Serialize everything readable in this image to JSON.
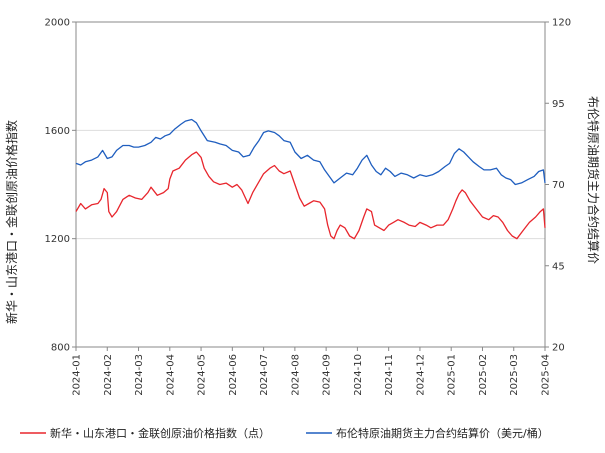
{
  "chart_data": {
    "type": "line",
    "left_axis": {
      "label": "新华・山东港口・金联创原油价格指数",
      "min": 800,
      "max": 2000,
      "ticks": [
        "800",
        "1200",
        "1600",
        "2000"
      ]
    },
    "right_axis": {
      "label": "布伦特原油期货主力合约结算价",
      "min": 20,
      "max": 120,
      "ticks": [
        "20",
        "45",
        "70",
        "95",
        "120"
      ]
    },
    "x_categories": [
      "2024-01",
      "2024-02",
      "2024-03",
      "2024-04",
      "2024-05",
      "2024-06",
      "2024-07",
      "2024-08",
      "2024-09",
      "2024-10",
      "2024-11",
      "2024-12",
      "2025-01",
      "2025-02",
      "2025-03",
      "2025-04"
    ],
    "grid": true,
    "legend_position": "bottom",
    "series": [
      {
        "name": "新华・山东港口・金联创原油价格指数（点）",
        "axis": "left",
        "color": "#e8262d",
        "values": [
          [
            0.0,
            1300
          ],
          [
            0.15,
            1330
          ],
          [
            0.3,
            1310
          ],
          [
            0.5,
            1325
          ],
          [
            0.7,
            1330
          ],
          [
            0.8,
            1345
          ],
          [
            0.9,
            1385
          ],
          [
            1.0,
            1370
          ],
          [
            1.05,
            1300
          ],
          [
            1.15,
            1280
          ],
          [
            1.3,
            1300
          ],
          [
            1.5,
            1345
          ],
          [
            1.7,
            1360
          ],
          [
            1.9,
            1350
          ],
          [
            2.1,
            1345
          ],
          [
            2.3,
            1370
          ],
          [
            2.4,
            1390
          ],
          [
            2.6,
            1360
          ],
          [
            2.8,
            1370
          ],
          [
            2.95,
            1385
          ],
          [
            3.0,
            1420
          ],
          [
            3.1,
            1450
          ],
          [
            3.3,
            1460
          ],
          [
            3.5,
            1490
          ],
          [
            3.7,
            1510
          ],
          [
            3.85,
            1520
          ],
          [
            4.0,
            1500
          ],
          [
            4.1,
            1460
          ],
          [
            4.25,
            1430
          ],
          [
            4.4,
            1410
          ],
          [
            4.6,
            1400
          ],
          [
            4.8,
            1405
          ],
          [
            5.0,
            1390
          ],
          [
            5.15,
            1400
          ],
          [
            5.3,
            1380
          ],
          [
            5.5,
            1330
          ],
          [
            5.65,
            1370
          ],
          [
            5.85,
            1410
          ],
          [
            6.0,
            1440
          ],
          [
            6.2,
            1460
          ],
          [
            6.35,
            1470
          ],
          [
            6.5,
            1450
          ],
          [
            6.65,
            1440
          ],
          [
            6.85,
            1450
          ],
          [
            7.0,
            1400
          ],
          [
            7.15,
            1350
          ],
          [
            7.3,
            1320
          ],
          [
            7.45,
            1330
          ],
          [
            7.6,
            1340
          ],
          [
            7.8,
            1335
          ],
          [
            7.95,
            1310
          ],
          [
            8.05,
            1250
          ],
          [
            8.15,
            1210
          ],
          [
            8.25,
            1200
          ],
          [
            8.35,
            1230
          ],
          [
            8.45,
            1250
          ],
          [
            8.6,
            1240
          ],
          [
            8.75,
            1210
          ],
          [
            8.9,
            1200
          ],
          [
            9.05,
            1230
          ],
          [
            9.2,
            1280
          ],
          [
            9.3,
            1310
          ],
          [
            9.45,
            1300
          ],
          [
            9.55,
            1250
          ],
          [
            9.7,
            1240
          ],
          [
            9.85,
            1230
          ],
          [
            10.0,
            1250
          ],
          [
            10.15,
            1260
          ],
          [
            10.3,
            1270
          ],
          [
            10.5,
            1260
          ],
          [
            10.65,
            1250
          ],
          [
            10.85,
            1245
          ],
          [
            11.0,
            1260
          ],
          [
            11.2,
            1250
          ],
          [
            11.35,
            1240
          ],
          [
            11.55,
            1250
          ],
          [
            11.75,
            1250
          ],
          [
            11.9,
            1270
          ],
          [
            12.05,
            1310
          ],
          [
            12.15,
            1340
          ],
          [
            12.25,
            1365
          ],
          [
            12.35,
            1380
          ],
          [
            12.45,
            1370
          ],
          [
            12.6,
            1340
          ],
          [
            12.8,
            1310
          ],
          [
            13.0,
            1280
          ],
          [
            13.2,
            1270
          ],
          [
            13.35,
            1285
          ],
          [
            13.5,
            1280
          ],
          [
            13.65,
            1260
          ],
          [
            13.8,
            1230
          ],
          [
            13.95,
            1210
          ],
          [
            14.1,
            1200
          ],
          [
            14.3,
            1230
          ],
          [
            14.5,
            1260
          ],
          [
            14.7,
            1280
          ],
          [
            14.85,
            1300
          ],
          [
            14.95,
            1310
          ],
          [
            15.0,
            1240
          ]
        ]
      },
      {
        "name": "布伦特原油期货主力合约结算价（美元/桶）",
        "axis": "right",
        "color": "#1f5ebf",
        "values": [
          [
            0.0,
            76.5
          ],
          [
            0.15,
            76.0
          ],
          [
            0.3,
            77.0
          ],
          [
            0.5,
            77.5
          ],
          [
            0.7,
            78.5
          ],
          [
            0.85,
            80.5
          ],
          [
            1.0,
            78.0
          ],
          [
            1.15,
            78.5
          ],
          [
            1.3,
            80.5
          ],
          [
            1.5,
            82.0
          ],
          [
            1.7,
            82.0
          ],
          [
            1.85,
            81.5
          ],
          [
            2.0,
            81.5
          ],
          [
            2.2,
            82.0
          ],
          [
            2.4,
            83.0
          ],
          [
            2.55,
            84.5
          ],
          [
            2.7,
            84.0
          ],
          [
            2.85,
            85.0
          ],
          [
            3.0,
            85.5
          ],
          [
            3.15,
            87.0
          ],
          [
            3.35,
            88.5
          ],
          [
            3.5,
            89.5
          ],
          [
            3.7,
            90.0
          ],
          [
            3.85,
            89.0
          ],
          [
            4.0,
            86.5
          ],
          [
            4.2,
            83.5
          ],
          [
            4.45,
            83.0
          ],
          [
            4.6,
            82.5
          ],
          [
            4.8,
            82.0
          ],
          [
            5.0,
            80.5
          ],
          [
            5.2,
            80.0
          ],
          [
            5.35,
            78.5
          ],
          [
            5.55,
            79.0
          ],
          [
            5.7,
            81.5
          ],
          [
            5.85,
            83.5
          ],
          [
            6.0,
            86.0
          ],
          [
            6.15,
            86.5
          ],
          [
            6.35,
            86.0
          ],
          [
            6.5,
            85.0
          ],
          [
            6.65,
            83.5
          ],
          [
            6.85,
            83.0
          ],
          [
            7.0,
            80.0
          ],
          [
            7.2,
            78.0
          ],
          [
            7.4,
            79.0
          ],
          [
            7.6,
            77.5
          ],
          [
            7.8,
            77.0
          ],
          [
            7.95,
            74.5
          ],
          [
            8.1,
            72.5
          ],
          [
            8.25,
            70.5
          ],
          [
            8.45,
            72.0
          ],
          [
            8.65,
            73.5
          ],
          [
            8.85,
            73.0
          ],
          [
            9.0,
            75.0
          ],
          [
            9.15,
            77.5
          ],
          [
            9.3,
            79.0
          ],
          [
            9.45,
            76.0
          ],
          [
            9.6,
            74.0
          ],
          [
            9.75,
            73.0
          ],
          [
            9.9,
            75.0
          ],
          [
            10.05,
            74.0
          ],
          [
            10.2,
            72.5
          ],
          [
            10.4,
            73.5
          ],
          [
            10.6,
            73.0
          ],
          [
            10.8,
            72.0
          ],
          [
            11.0,
            73.0
          ],
          [
            11.2,
            72.5
          ],
          [
            11.4,
            73.0
          ],
          [
            11.6,
            74.0
          ],
          [
            11.8,
            75.5
          ],
          [
            11.95,
            76.5
          ],
          [
            12.1,
            79.5
          ],
          [
            12.25,
            81.0
          ],
          [
            12.4,
            80.0
          ],
          [
            12.55,
            78.5
          ],
          [
            12.7,
            77.0
          ],
          [
            12.9,
            75.5
          ],
          [
            13.05,
            74.5
          ],
          [
            13.25,
            74.5
          ],
          [
            13.45,
            75.0
          ],
          [
            13.6,
            73.0
          ],
          [
            13.75,
            72.0
          ],
          [
            13.9,
            71.5
          ],
          [
            14.05,
            70.0
          ],
          [
            14.25,
            70.5
          ],
          [
            14.45,
            71.5
          ],
          [
            14.65,
            72.5
          ],
          [
            14.8,
            74.0
          ],
          [
            14.95,
            74.5
          ],
          [
            15.0,
            70.5
          ]
        ]
      }
    ]
  }
}
